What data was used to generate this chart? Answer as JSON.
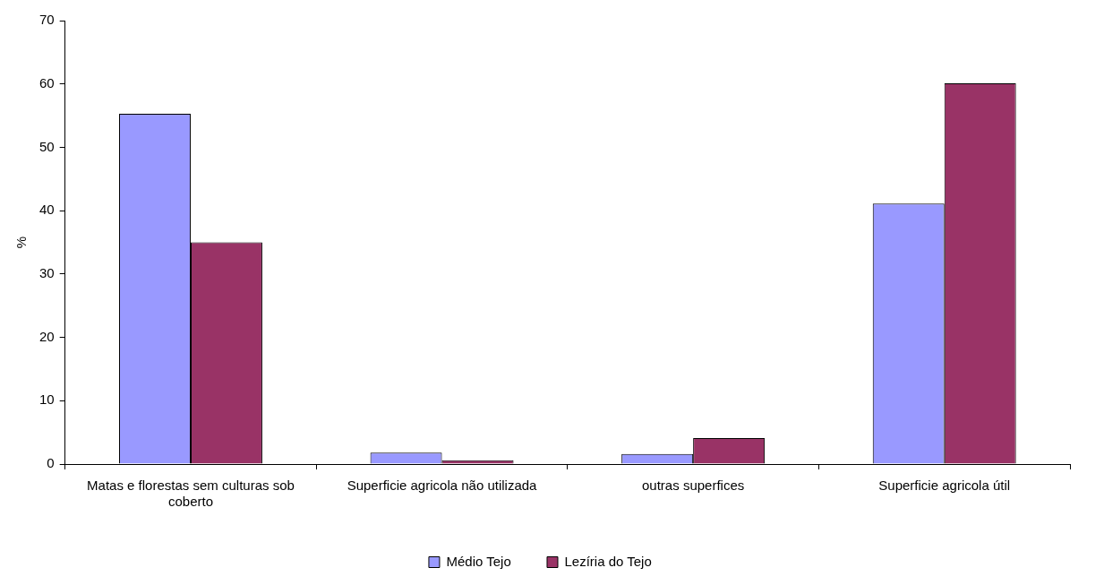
{
  "chart_data": {
    "type": "bar",
    "ylabel": "%",
    "categories": [
      "Matas e florestas sem culturas sob coberto",
      "Superficie agricola não utilizada",
      "outras superfices",
      "Superficie agricola útil"
    ],
    "series": [
      {
        "name": "Médio Tejo",
        "color": "#9999ff",
        "values": [
          55.3,
          1.8,
          1.6,
          41.1
        ]
      },
      {
        "name": "Lezíria do Tejo",
        "color": "#993366",
        "values": [
          35.0,
          0.6,
          4.1,
          60.1
        ]
      }
    ],
    "ylim": [
      0,
      70
    ],
    "yticks": [
      0,
      10,
      20,
      30,
      40,
      50,
      60,
      70
    ],
    "grid": false,
    "legend": "bottom"
  }
}
